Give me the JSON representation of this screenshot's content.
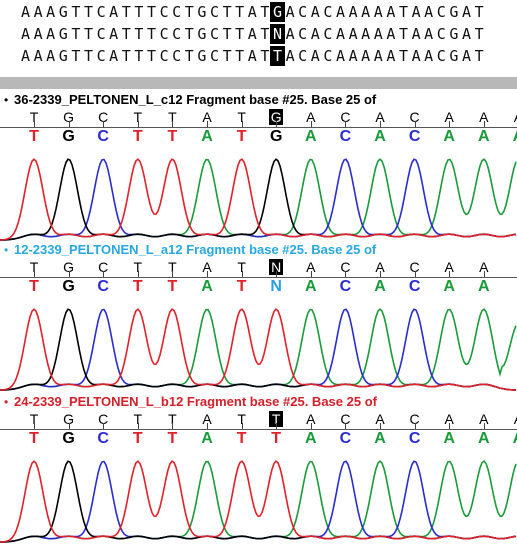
{
  "alignment": {
    "rows": [
      {
        "text": "AAAGTTCATTTCCTGCTTATGACACAAAAATAACGAT",
        "highlight_index": 20
      },
      {
        "text": "AAAGTTCATTTCCTGCTTATNACACAAAAATAACGAT",
        "highlight_index": 20
      },
      {
        "text": "AAAGTTCATTTCCTGCTTATTACACAAAAATAACGAT",
        "highlight_index": 20
      }
    ]
  },
  "panels": [
    {
      "title": "36-2339_PELTONEN_L_c12 Fragment base #25. Base 25 of",
      "header_color": "#000000",
      "ruler_bases": [
        "T",
        "G",
        "C",
        "T",
        "T",
        "A",
        "T",
        "G",
        "A",
        "C",
        "A",
        "C",
        "A",
        "A",
        "A"
      ],
      "highlight_index": 7,
      "calls": [
        "T",
        "G",
        "C",
        "T",
        "T",
        "A",
        "T",
        "G",
        "A",
        "C",
        "A",
        "C",
        "A",
        "A",
        "A"
      ]
    },
    {
      "title": "12-2339_PELTONEN_L_a12 Fragment base #25. Base 25 of",
      "header_color": "#29a8e0",
      "ruler_bases": [
        "T",
        "G",
        "C",
        "T",
        "T",
        "A",
        "T",
        "N",
        "A",
        "C",
        "A",
        "C",
        "A",
        "A"
      ],
      "highlight_index": 7,
      "calls": [
        "T",
        "G",
        "C",
        "T",
        "T",
        "A",
        "T",
        "N",
        "A",
        "C",
        "A",
        "C",
        "A",
        "A"
      ]
    },
    {
      "title": "24-2339_PELTONEN_L_b12 Fragment base #25. Base 25 of",
      "header_color": "#d4202a",
      "ruler_bases": [
        "T",
        "G",
        "C",
        "T",
        "T",
        "A",
        "T",
        "T",
        "A",
        "C",
        "A",
        "C",
        "A",
        "A",
        "A"
      ],
      "highlight_index": 7,
      "calls": [
        "T",
        "G",
        "C",
        "T",
        "T",
        "A",
        "T",
        "T",
        "A",
        "C",
        "A",
        "C",
        "A",
        "A",
        "A"
      ]
    }
  ],
  "base_colors": {
    "A": "#1a9a3a",
    "C": "#2b2bd0",
    "G": "#000000",
    "T": "#e0202a",
    "N": "#2ba0e0"
  }
}
